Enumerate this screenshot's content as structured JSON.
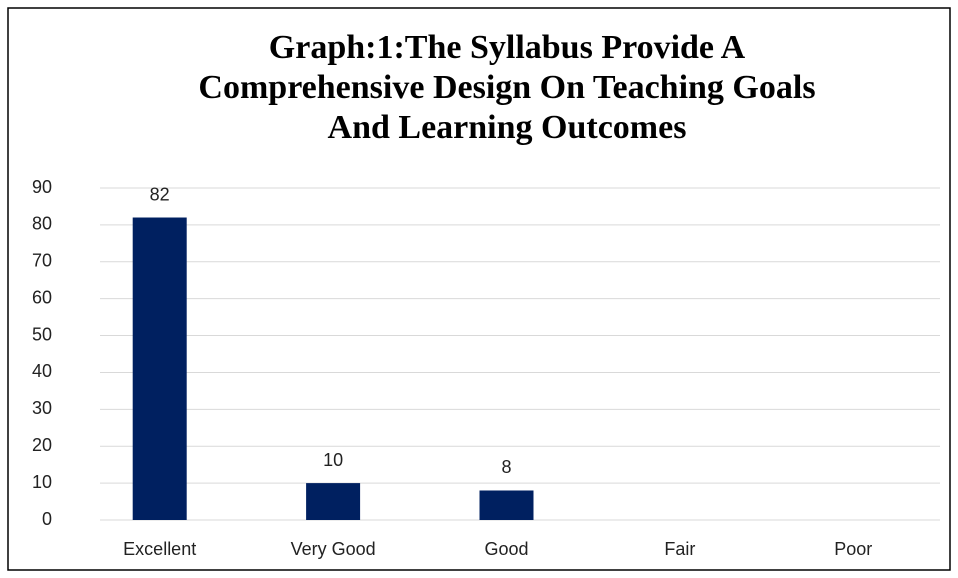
{
  "chart_data": {
    "type": "bar",
    "title": [
      "Graph:1:The Syllabus Provide A",
      "Comprehensive Design On Teaching Goals",
      "And Learning Outcomes"
    ],
    "categories": [
      "Excellent",
      "Very Good",
      "Good",
      "Fair",
      "Poor"
    ],
    "values": [
      82,
      10,
      8,
      null,
      null
    ],
    "color": "#002060",
    "ylim": [
      0,
      90
    ],
    "yticks": [
      0,
      10,
      20,
      30,
      40,
      50,
      60,
      70,
      80,
      90
    ],
    "grid": true
  }
}
